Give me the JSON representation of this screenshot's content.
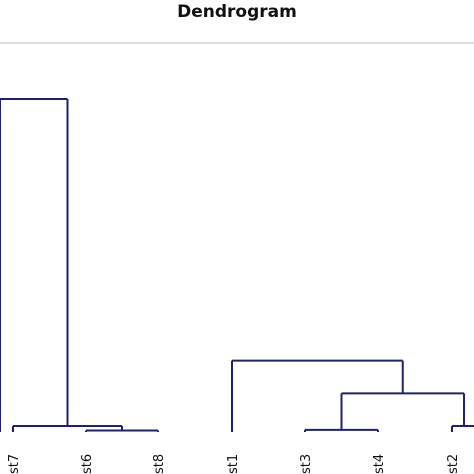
{
  "chart_data": {
    "type": "dendrogram",
    "title": "Dendrogram",
    "leaves": [
      "st7",
      "st6",
      "st8",
      "st1",
      "st3",
      "st4",
      "st2"
    ],
    "merges": [
      {
        "left": "st6",
        "right": "st8",
        "height": 0.5
      },
      {
        "left": "st7",
        "right": "{st6,st8}",
        "height": 2.0
      },
      {
        "left": "st3",
        "right": "st4",
        "height": 0.7
      },
      {
        "left": "st2",
        "right": "(right edge)",
        "height": 2.0
      },
      {
        "left": "{st3,st4}",
        "right": "{st2,...}",
        "height": 13.0
      },
      {
        "left": "st1",
        "right": "{st3,st4,st2,...}",
        "height": 24.0
      },
      {
        "left": "{st7,st6,st8}",
        "right": "{st1,...}",
        "height": 112.0
      }
    ],
    "ylim": [
      0,
      125
    ],
    "grid": false
  }
}
